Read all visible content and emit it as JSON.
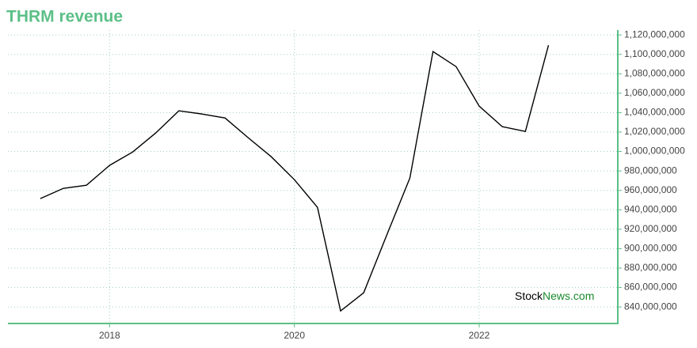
{
  "chart_data": {
    "type": "line",
    "title": "THRM revenue",
    "x": [
      2017.25,
      2017.5,
      2017.75,
      2018,
      2018.25,
      2018.5,
      2018.75,
      2019,
      2019.25,
      2019.5,
      2019.75,
      2020,
      2020.25,
      2020.5,
      2020.75,
      2021,
      2021.25,
      2021.5,
      2021.75,
      2022,
      2022.25,
      2022.5,
      2022.75
    ],
    "series": [
      {
        "name": "THRM revenue",
        "color": "#000000",
        "values": [
          951500000,
          962100000,
          965300000,
          985700000,
          999500000,
          1019100000,
          1041900000,
          1038600000,
          1034500000,
          1014200000,
          994600000,
          971000000,
          942500000,
          835900000,
          854600000,
          914100000,
          972700000,
          1102900000,
          1087400000,
          1046700000,
          1025600000,
          1020700000,
          1109400000
        ]
      }
    ],
    "xlim": [
      2016.9,
      2023.5
    ],
    "xticks": [
      2018,
      2020,
      2022
    ],
    "ylim": [
      823000000,
      1125000000
    ],
    "yticks": [
      {
        "value": 840000000,
        "label": "840,000,000"
      },
      {
        "value": 860000000,
        "label": "860,000,000"
      },
      {
        "value": 880000000,
        "label": "880,000,000"
      },
      {
        "value": 900000000,
        "label": "900,000,000"
      },
      {
        "value": 920000000,
        "label": "920,000,000"
      },
      {
        "value": 940000000,
        "label": "940,000,000"
      },
      {
        "value": 960000000,
        "label": "960,000,000"
      },
      {
        "value": 980000000,
        "label": "980,000,000"
      },
      {
        "value": 1000000000,
        "label": "1,000,000,000"
      },
      {
        "value": 1020000000,
        "label": "1,020,000,000"
      },
      {
        "value": 1040000000,
        "label": "1,040,000,000"
      },
      {
        "value": 1060000000,
        "label": "1,060,000,000"
      },
      {
        "value": 1080000000,
        "label": "1,080,000,000"
      },
      {
        "value": 1100000000,
        "label": "1,100,000,000"
      },
      {
        "value": 1120000000,
        "label": "1,120,000,000"
      }
    ],
    "grid": true,
    "annotations": [
      "Stock",
      "News.com"
    ]
  }
}
